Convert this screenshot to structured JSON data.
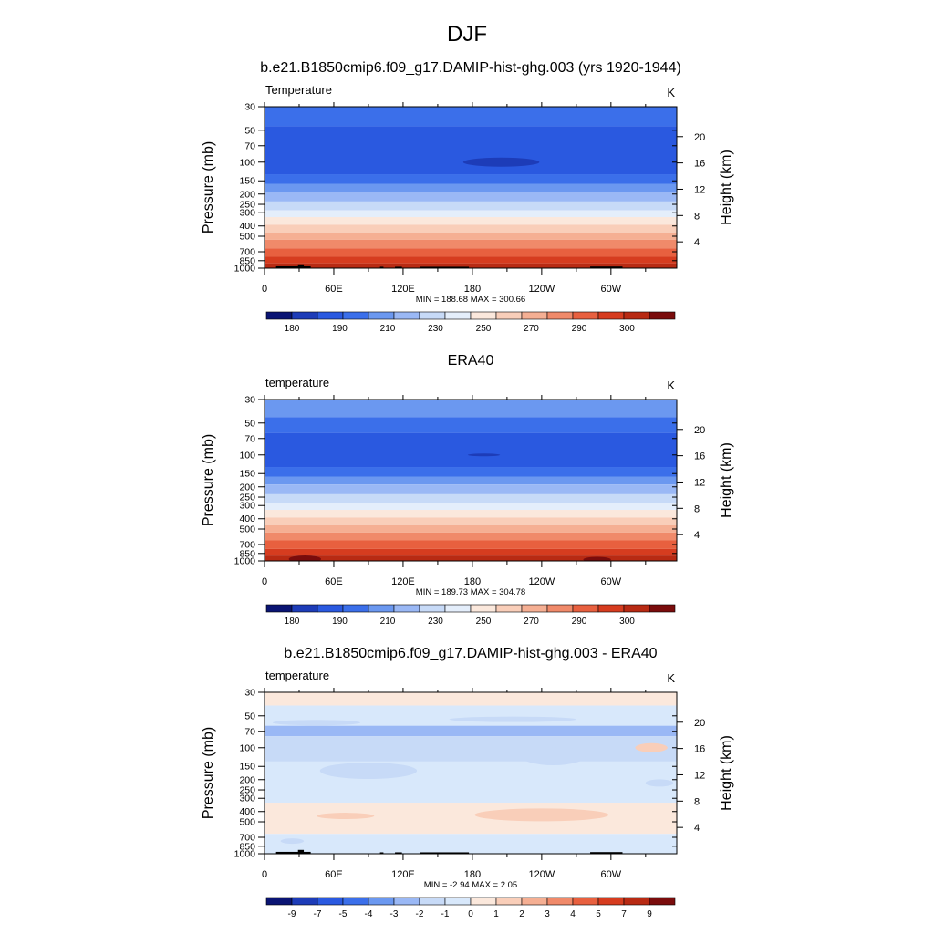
{
  "figure": {
    "title": "DJF"
  },
  "axes_common": {
    "ylabel_left": "Pressure (mb)",
    "ylabel_right": "Height (km)",
    "pressure_ticks": [
      30,
      50,
      70,
      100,
      150,
      200,
      250,
      300,
      400,
      500,
      700,
      850,
      1000
    ],
    "height_ticks": [
      4,
      8,
      12,
      16,
      20
    ],
    "lon_ticks": [
      {
        "lon": 0,
        "label": "0"
      },
      {
        "lon": 60,
        "label": "60E"
      },
      {
        "lon": 120,
        "label": "120E"
      },
      {
        "lon": 180,
        "label": "180"
      },
      {
        "lon": 240,
        "label": "120W"
      },
      {
        "lon": 300,
        "label": "60W"
      }
    ],
    "xlim": [
      0,
      357
    ],
    "ylim": [
      1000,
      30
    ],
    "scale": "log-pressure"
  },
  "chart_data": [
    {
      "type": "heatmap",
      "title": "b.e21.B1850cmip6.f09_g17.DAMIP-hist-ghg.003 (yrs 1920-1944)",
      "variable_label": "Temperature",
      "units": "K",
      "stats": "MIN = 188.68  MAX = 300.66",
      "colorbar_ticks": [
        "180",
        "190",
        "210",
        "230",
        "250",
        "270",
        "290",
        "300"
      ],
      "colors": [
        "#0a1473",
        "#1d3cb8",
        "#2a59e0",
        "#3b6fea",
        "#6b98f0",
        "#9ab8f5",
        "#c7daf7",
        "#e4eefb",
        "#fbe8dc",
        "#f9ceb9",
        "#f5af93",
        "#f08a6a",
        "#e8603f",
        "#d63c1f",
        "#b82a13",
        "#7a0c0c"
      ],
      "layers": [
        {
          "p_top": 30,
          "p_bot": 46,
          "color": "#3b6fea"
        },
        {
          "p_top": 46,
          "p_bot": 130,
          "color": "#2a59e0"
        },
        {
          "p_top": 130,
          "p_bot": 160,
          "color": "#3b6fea"
        },
        {
          "p_top": 160,
          "p_bot": 190,
          "color": "#6b98f0"
        },
        {
          "p_top": 190,
          "p_bot": 235,
          "color": "#9ab8f5"
        },
        {
          "p_top": 235,
          "p_bot": 285,
          "color": "#c7daf7"
        },
        {
          "p_top": 285,
          "p_bot": 330,
          "color": "#e4eefb"
        },
        {
          "p_top": 330,
          "p_bot": 390,
          "color": "#fbe8dc"
        },
        {
          "p_top": 390,
          "p_bot": 460,
          "color": "#f9ceb9"
        },
        {
          "p_top": 460,
          "p_bot": 540,
          "color": "#f5af93"
        },
        {
          "p_top": 540,
          "p_bot": 650,
          "color": "#f08a6a"
        },
        {
          "p_top": 650,
          "p_bot": 780,
          "color": "#e8603f"
        },
        {
          "p_top": 780,
          "p_bot": 900,
          "color": "#d63c1f"
        },
        {
          "p_top": 900,
          "p_bot": 1000,
          "color": "#b82a13"
        }
      ],
      "features": [
        {
          "lon": 205,
          "p": 100,
          "rx": 33,
          "ry": 5,
          "color": "#1d3cb8"
        }
      ],
      "terrain": [
        {
          "lon0": 10,
          "lon1": 40,
          "p": 960
        },
        {
          "lon0": 29,
          "lon1": 34,
          "p": 920
        },
        {
          "lon0": 100,
          "lon1": 103,
          "p": 970
        },
        {
          "lon0": 113,
          "lon1": 119,
          "p": 970
        },
        {
          "lon0": 135,
          "lon1": 177,
          "p": 970
        },
        {
          "lon0": 282,
          "lon1": 310,
          "p": 965
        }
      ]
    },
    {
      "type": "heatmap",
      "title": "ERA40",
      "variable_label": "temperature",
      "units": "K",
      "stats": "MIN = 189.73  MAX = 304.78",
      "colorbar_ticks": [
        "180",
        "190",
        "210",
        "230",
        "250",
        "270",
        "290",
        "300"
      ],
      "colors": [
        "#0a1473",
        "#1d3cb8",
        "#2a59e0",
        "#3b6fea",
        "#6b98f0",
        "#9ab8f5",
        "#c7daf7",
        "#e4eefb",
        "#fbe8dc",
        "#f9ceb9",
        "#f5af93",
        "#f08a6a",
        "#e8603f",
        "#d63c1f",
        "#b82a13",
        "#7a0c0c"
      ],
      "layers": [
        {
          "p_top": 30,
          "p_bot": 44,
          "color": "#6b98f0"
        },
        {
          "p_top": 44,
          "p_bot": 62,
          "color": "#3b6fea"
        },
        {
          "p_top": 62,
          "p_bot": 130,
          "color": "#2a59e0"
        },
        {
          "p_top": 130,
          "p_bot": 160,
          "color": "#3b6fea"
        },
        {
          "p_top": 160,
          "p_bot": 190,
          "color": "#6b98f0"
        },
        {
          "p_top": 190,
          "p_bot": 235,
          "color": "#9ab8f5"
        },
        {
          "p_top": 235,
          "p_bot": 285,
          "color": "#c7daf7"
        },
        {
          "p_top": 285,
          "p_bot": 330,
          "color": "#e4eefb"
        },
        {
          "p_top": 330,
          "p_bot": 390,
          "color": "#fbe8dc"
        },
        {
          "p_top": 390,
          "p_bot": 460,
          "color": "#f9ceb9"
        },
        {
          "p_top": 460,
          "p_bot": 540,
          "color": "#f5af93"
        },
        {
          "p_top": 540,
          "p_bot": 640,
          "color": "#f08a6a"
        },
        {
          "p_top": 640,
          "p_bot": 770,
          "color": "#e8603f"
        },
        {
          "p_top": 770,
          "p_bot": 890,
          "color": "#d63c1f"
        },
        {
          "p_top": 890,
          "p_bot": 1000,
          "color": "#b82a13"
        }
      ],
      "features": [
        {
          "lon": 190,
          "p": 100,
          "rx": 14,
          "ry": 1.5,
          "color": "#1d3cb8"
        },
        {
          "lon": 35,
          "p": 960,
          "rx": 14,
          "ry": 4,
          "color": "#7a0c0c"
        },
        {
          "lon": 288,
          "p": 970,
          "rx": 12,
          "ry": 3,
          "color": "#7a0c0c"
        }
      ],
      "terrain": []
    },
    {
      "type": "heatmap",
      "title": "b.e21.B1850cmip6.f09_g17.DAMIP-hist-ghg.003 - ERA40",
      "variable_label": "temperature",
      "units": "K",
      "stats": "MIN =  -2.94  MAX =   2.05",
      "colorbar_ticks": [
        "-9",
        "-7",
        "-5",
        "-4",
        "-3",
        "-2",
        "-1",
        "0",
        "1",
        "2",
        "3",
        "4",
        "5",
        "7",
        "9"
      ],
      "colors": [
        "#0a1473",
        "#1d3cb8",
        "#2a59e0",
        "#3b6fea",
        "#6b98f0",
        "#9ab8f5",
        "#c7daf7",
        "#d8e8fb",
        "#fbe8dc",
        "#f9ceb9",
        "#f5af93",
        "#f08a6a",
        "#e8603f",
        "#d63c1f",
        "#b82a13",
        "#7a0c0c"
      ],
      "layers": [
        {
          "p_top": 30,
          "p_bot": 40,
          "color": "#fbe8dc"
        },
        {
          "p_top": 40,
          "p_bot": 62,
          "color": "#d8e8fb"
        },
        {
          "p_top": 62,
          "p_bot": 78,
          "color": "#9ab8f5"
        },
        {
          "p_top": 78,
          "p_bot": 135,
          "color": "#c7daf7"
        },
        {
          "p_top": 135,
          "p_bot": 330,
          "color": "#d8e8fb"
        },
        {
          "p_top": 330,
          "p_bot": 650,
          "color": "#fbe8dc"
        },
        {
          "p_top": 650,
          "p_bot": 1000,
          "color": "#d8e8fb"
        }
      ],
      "features": [
        {
          "lon": 45,
          "p": 58,
          "rx": 38,
          "ry": 3,
          "color": "#c7daf7"
        },
        {
          "lon": 215,
          "p": 54,
          "rx": 55,
          "ry": 3,
          "color": "#c7daf7"
        },
        {
          "lon": 90,
          "p": 165,
          "rx": 42,
          "ry": 9,
          "color": "#c7daf7"
        },
        {
          "lon": 250,
          "p": 120,
          "rx": 28,
          "ry": 10,
          "color": "#c7daf7"
        },
        {
          "lon": 160,
          "p": 100,
          "rx": 14,
          "ry": 6,
          "color": "#c7daf7"
        },
        {
          "lon": 335,
          "p": 100,
          "rx": 14,
          "ry": 5,
          "color": "#f9ceb9"
        },
        {
          "lon": 342,
          "p": 215,
          "rx": 12,
          "ry": 4,
          "color": "#c7daf7"
        },
        {
          "lon": 70,
          "p": 440,
          "rx": 25,
          "ry": 3.5,
          "color": "#f9ceb9"
        },
        {
          "lon": 240,
          "p": 430,
          "rx": 58,
          "ry": 7,
          "color": "#f9ceb9"
        },
        {
          "lon": 24,
          "p": 760,
          "rx": 10,
          "ry": 3,
          "color": "#c7daf7"
        }
      ],
      "terrain": [
        {
          "lon0": 10,
          "lon1": 40,
          "p": 960
        },
        {
          "lon0": 29,
          "lon1": 34,
          "p": 920
        },
        {
          "lon0": 100,
          "lon1": 103,
          "p": 970
        },
        {
          "lon0": 113,
          "lon1": 119,
          "p": 970
        },
        {
          "lon0": 135,
          "lon1": 177,
          "p": 970
        },
        {
          "lon0": 282,
          "lon1": 310,
          "p": 965
        }
      ]
    }
  ]
}
